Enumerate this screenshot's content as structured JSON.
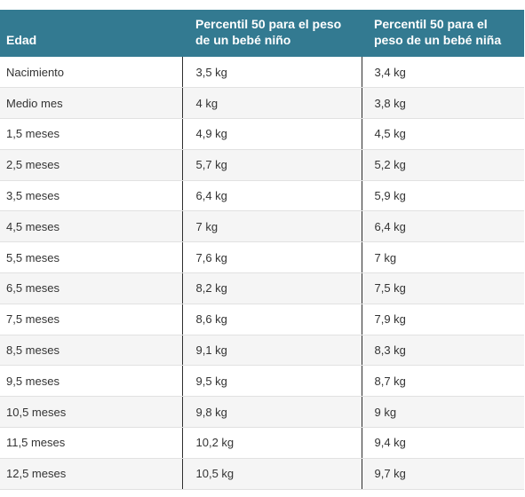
{
  "table": {
    "headers": {
      "age": "Edad",
      "boy": "Percentil 50 para el peso de un bebé niño",
      "girl": "Percentil 50 para el peso de un bebé niña"
    },
    "rows": [
      {
        "age": "Nacimiento",
        "boy": "3,5 kg",
        "girl": "3,4 kg"
      },
      {
        "age": "Medio mes",
        "boy": "4 kg",
        "girl": "3,8 kg"
      },
      {
        "age": "1,5 meses",
        "boy": "4,9 kg",
        "girl": "4,5 kg"
      },
      {
        "age": "2,5 meses",
        "boy": "5,7 kg",
        "girl": "5,2 kg"
      },
      {
        "age": "3,5 meses",
        "boy": "6,4 kg",
        "girl": "5,9 kg"
      },
      {
        "age": "4,5 meses",
        "boy": "7 kg",
        "girl": "6,4 kg"
      },
      {
        "age": "5,5 meses",
        "boy": "7,6 kg",
        "girl": "7 kg"
      },
      {
        "age": "6,5 meses",
        "boy": "8,2 kg",
        "girl": "7,5 kg"
      },
      {
        "age": "7,5 meses",
        "boy": "8,6 kg",
        "girl": "7,9 kg"
      },
      {
        "age": "8,5 meses",
        "boy": "9,1 kg",
        "girl": "8,3 kg"
      },
      {
        "age": "9,5 meses",
        "boy": "9,5 kg",
        "girl": "8,7 kg"
      },
      {
        "age": "10,5 meses",
        "boy": "9,8 kg",
        "girl": "9 kg"
      },
      {
        "age": "11,5 meses",
        "boy": "10,2 kg",
        "girl": "9,4 kg"
      },
      {
        "age": "12,5 meses",
        "boy": "10,5 kg",
        "girl": "9,7 kg"
      }
    ]
  }
}
